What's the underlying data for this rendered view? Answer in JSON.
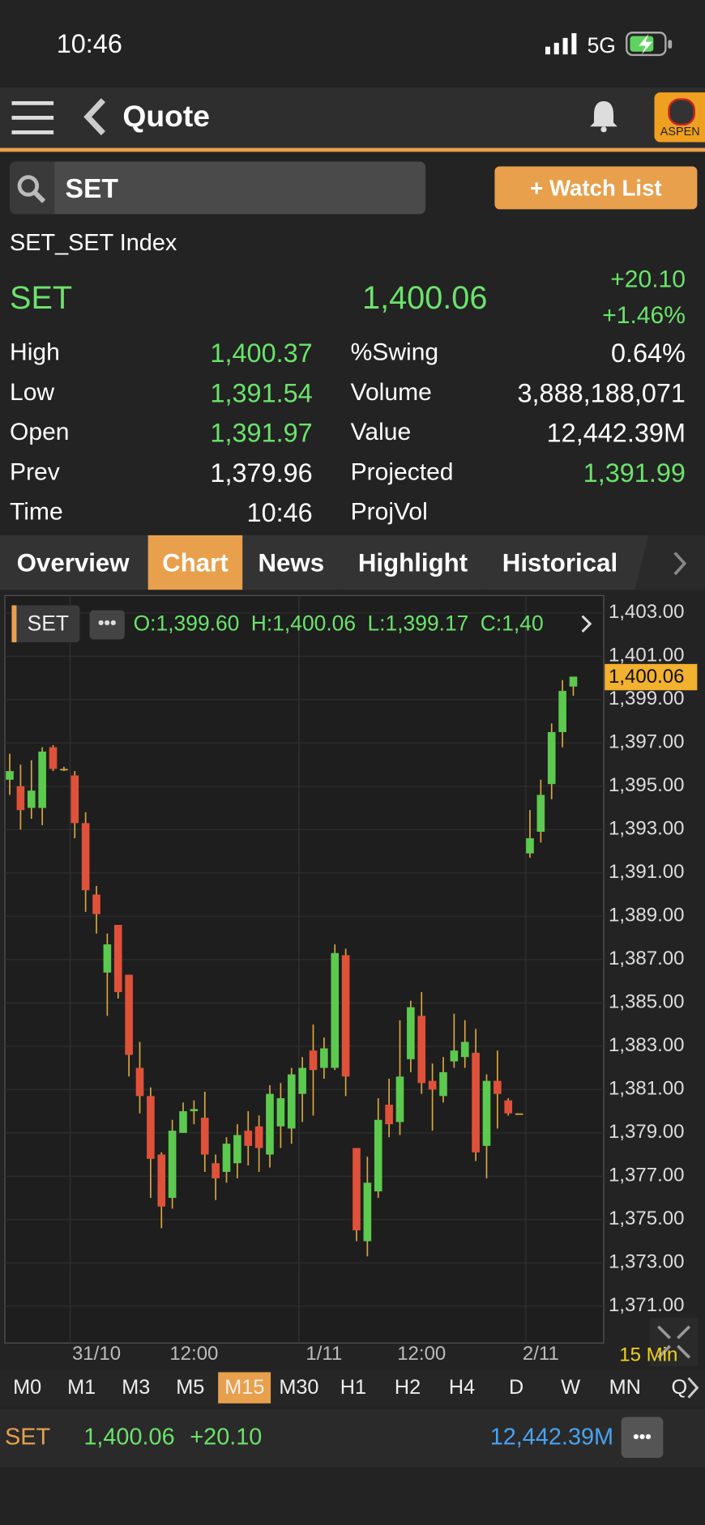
{
  "status": {
    "time": "10:46",
    "network": "5G"
  },
  "nav": {
    "title": "Quote",
    "logo": "ASPEN"
  },
  "search": {
    "query": "SET",
    "button": "+ Watch List"
  },
  "quote": {
    "name": "SET_SET Index",
    "symbol": "SET",
    "price": "1,400.06",
    "change": "+20.10",
    "change_pct": "+1.46%"
  },
  "stats_left": [
    {
      "label": "High",
      "value": "1,400.37",
      "up": true
    },
    {
      "label": "Low",
      "value": "1,391.54",
      "up": true
    },
    {
      "label": "Open",
      "value": "1,391.97",
      "up": true
    },
    {
      "label": "Prev",
      "value": "1,379.96",
      "up": false
    },
    {
      "label": "Time",
      "value": "10:46",
      "up": false
    }
  ],
  "stats_right": [
    {
      "label": "%Swing",
      "value": "0.64%",
      "up": false
    },
    {
      "label": "Volume",
      "value": "3,888,188,071",
      "up": false
    },
    {
      "label": "Value",
      "value": "12,442.39M",
      "up": false
    },
    {
      "label": "Projected",
      "value": "1,391.99",
      "up": true
    },
    {
      "label": "ProjVol"
    }
  ],
  "tabs": {
    "items": [
      "Overview",
      "Chart",
      "News",
      "Highlight",
      "Historical"
    ],
    "active": "Chart"
  },
  "chart_data": {
    "type": "candlestick",
    "symbol": "SET",
    "info": [
      "O:1,399.60",
      "H:1,400.06",
      "L:1,399.17",
      "C:1,40"
    ],
    "up_color": "#5cc94f",
    "down_color": "#e0513a",
    "wick_color": "#d9a640",
    "grid": true,
    "categories": [
      null,
      null,
      null,
      null,
      null,
      null,
      null,
      null,
      "31/10",
      null,
      null,
      null,
      null,
      null,
      null,
      null,
      null,
      "12:00",
      null,
      null,
      null,
      null,
      null,
      null,
      null,
      null,
      null,
      null,
      null,
      "1/11",
      null,
      null,
      null,
      null,
      null,
      null,
      null,
      null,
      "12:00",
      null,
      null,
      null,
      null,
      null,
      null,
      null,
      null,
      null,
      null,
      "2/11",
      null,
      null,
      null
    ],
    "open": [
      1395.3,
      1395.0,
      1394.0,
      1394.0,
      1396.8,
      1395.8,
      1395.5,
      1393.3,
      1390.0,
      1386.4,
      1388.6,
      1386.3,
      1382.0,
      1380.7,
      1378.0,
      1376.0,
      1379.0,
      1380.0,
      1379.7,
      1377.6,
      1377.2,
      1377.6,
      1379.1,
      1379.3,
      1378.0,
      1379.3,
      1379.2,
      1380.8,
      1382.8,
      1382.0,
      1382.0,
      1387.2,
      1378.3,
      1374.0,
      1376.3,
      1380.3,
      1379.5,
      1382.4,
      1384.4,
      1381.4,
      1380.7,
      1382.3,
      1382.5,
      1382.7,
      1378.4,
      1381.4,
      1380.5,
      1379.9,
      1391.9,
      1392.9,
      1395.1,
      1397.5,
      1399.6
    ],
    "high": [
      1396.5,
      1396.0,
      1396.2,
      1396.8,
      1396.9,
      1395.9,
      1395.7,
      1393.8,
      1390.4,
      1388.2,
      1388.6,
      1386.3,
      1383.2,
      1381.1,
      1378.1,
      1379.6,
      1380.4,
      1380.5,
      1380.9,
      1378.0,
      1378.8,
      1379.4,
      1380.0,
      1379.8,
      1381.2,
      1381.3,
      1382.0,
      1382.5,
      1384.0,
      1383.4,
      1387.7,
      1387.5,
      1378.3,
      1377.9,
      1380.6,
      1381.5,
      1384.2,
      1385.1,
      1385.5,
      1382.2,
      1382.5,
      1384.5,
      1384.2,
      1383.8,
      1381.7,
      1382.8,
      1380.6,
      1379.9,
      1393.9,
      1395.3,
      1397.9,
      1399.9,
      1400.06
    ],
    "low": [
      1394.6,
      1393.0,
      1393.5,
      1393.2,
      1395.7,
      1395.7,
      1392.6,
      1389.2,
      1388.2,
      1384.4,
      1385.2,
      1381.6,
      1379.9,
      1376.0,
      1374.6,
      1375.5,
      1379.0,
      1379.4,
      1377.2,
      1375.9,
      1376.7,
      1376.9,
      1377.5,
      1377.2,
      1377.4,
      1378.3,
      1378.5,
      1379.5,
      1379.8,
      1381.5,
      1381.9,
      1380.7,
      1374.0,
      1373.3,
      1376.0,
      1378.8,
      1378.9,
      1381.8,
      1380.8,
      1379.1,
      1380.4,
      1382.0,
      1382.0,
      1377.7,
      1376.9,
      1379.2,
      1379.8,
      1379.9,
      1391.7,
      1392.4,
      1394.4,
      1396.8,
      1399.17
    ],
    "close": [
      1395.7,
      1393.9,
      1394.8,
      1396.6,
      1395.8,
      1395.8,
      1393.3,
      1390.2,
      1389.1,
      1387.7,
      1385.5,
      1382.6,
      1380.7,
      1377.8,
      1375.6,
      1379.1,
      1380.0,
      1380.1,
      1378.0,
      1376.9,
      1378.5,
      1378.9,
      1378.4,
      1378.3,
      1380.8,
      1380.6,
      1381.7,
      1382.0,
      1381.9,
      1382.9,
      1387.3,
      1381.6,
      1374.5,
      1376.7,
      1379.6,
      1379.4,
      1381.6,
      1384.8,
      1381.3,
      1381.0,
      1381.8,
      1382.8,
      1383.2,
      1378.1,
      1381.4,
      1380.8,
      1379.9,
      1379.9,
      1392.6,
      1394.6,
      1397.5,
      1399.4,
      1400.06
    ],
    "ylim": [
      1369.3,
      1403.8
    ],
    "yticks": [
      {
        "value": 1403,
        "label": "1,403.00"
      },
      {
        "value": 1401,
        "label": "1,401.00"
      },
      {
        "value": 1399,
        "label": "1,399.00"
      },
      {
        "value": 1397,
        "label": "1,397.00"
      },
      {
        "value": 1395,
        "label": "1,395.00"
      },
      {
        "value": 1393,
        "label": "1,393.00"
      },
      {
        "value": 1391,
        "label": "1,391.00"
      },
      {
        "value": 1389,
        "label": "1,389.00"
      },
      {
        "value": 1387,
        "label": "1,387.00"
      },
      {
        "value": 1385,
        "label": "1,385.00"
      },
      {
        "value": 1383,
        "label": "1,383.00"
      },
      {
        "value": 1381,
        "label": "1,381.00"
      },
      {
        "value": 1379,
        "label": "1,379.00"
      },
      {
        "value": 1377,
        "label": "1,377.00"
      },
      {
        "value": 1375,
        "label": "1,375.00"
      },
      {
        "value": 1373,
        "label": "1,373.00"
      },
      {
        "value": 1371,
        "label": "1,371.00"
      }
    ],
    "last_price": {
      "value": 1400.06,
      "label": "1,400.06"
    },
    "interval": "15 Min"
  },
  "timeframes": {
    "items": [
      "M0",
      "M1",
      "M3",
      "M5",
      "M15",
      "M30",
      "H1",
      "H2",
      "H4",
      "D",
      "W",
      "MN",
      "Q"
    ],
    "active": "M15"
  },
  "bottom": {
    "symbol": "SET",
    "price": "1,400.06",
    "change": "+20.10",
    "value": "12,442.39M"
  }
}
